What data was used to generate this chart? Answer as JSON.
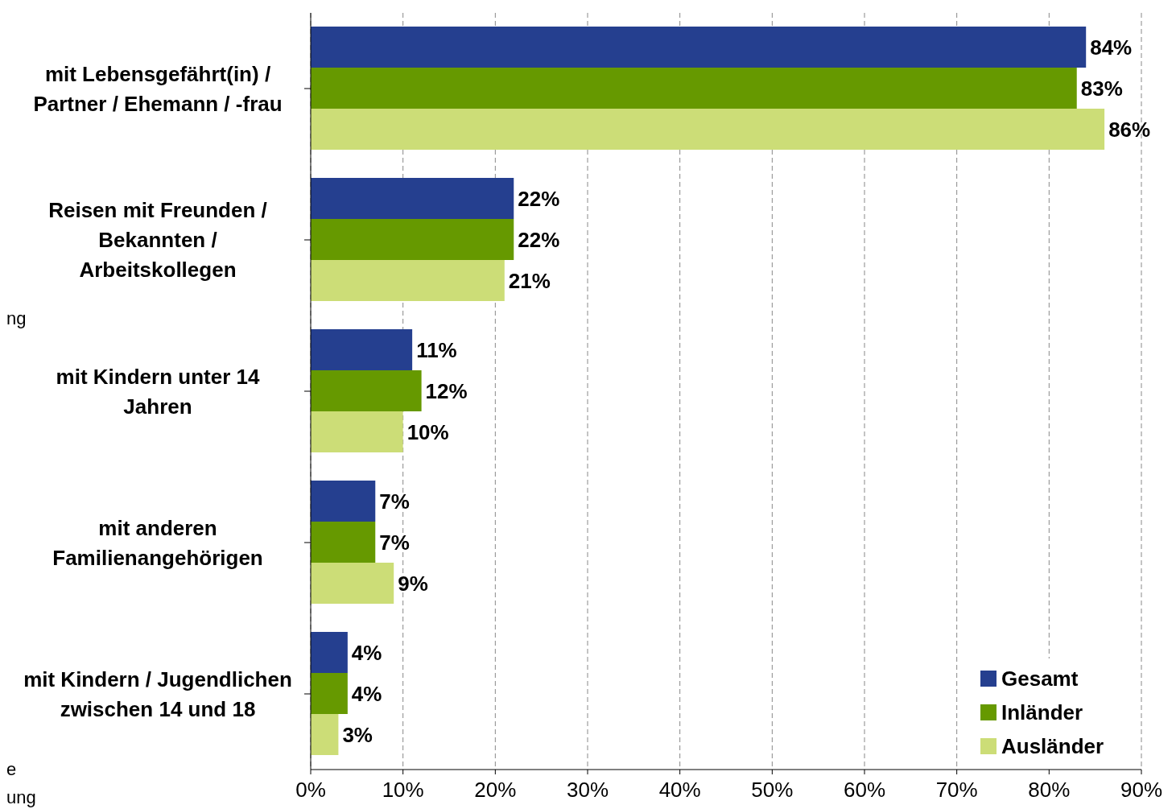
{
  "chart_data": {
    "type": "bar",
    "orientation": "horizontal",
    "categories": [
      "mit Lebensgefährt(in) / Partner / Ehemann / -frau",
      "Reisen mit Freunden / Bekannten / Arbeitskollegen",
      "mit Kindern unter 14 Jahren",
      "mit anderen Familienangehörigen",
      "mit Kindern / Jugendlichen zwischen 14 und 18"
    ],
    "series": [
      {
        "name": "Gesamt",
        "color": "#253f8f",
        "values": [
          84,
          22,
          11,
          7,
          4
        ],
        "value_labels": [
          "84%",
          "22%",
          "11%",
          "7%",
          "4%"
        ]
      },
      {
        "name": "Inländer",
        "color": "#669900",
        "values": [
          83,
          22,
          12,
          7,
          4
        ],
        "value_labels": [
          "83%",
          "22%",
          "12%",
          "7%",
          "4%"
        ]
      },
      {
        "name": "Ausländer",
        "color": "#ccdd77",
        "values": [
          86,
          21,
          10,
          9,
          3
        ],
        "value_labels": [
          "86%",
          "21%",
          "10%",
          "9%",
          "3%"
        ]
      }
    ],
    "xlim": [
      0,
      90
    ],
    "xticks": [
      {
        "value": 0,
        "label": "0%"
      },
      {
        "value": 10,
        "label": "10%"
      },
      {
        "value": 20,
        "label": "20%"
      },
      {
        "value": 30,
        "label": "30%"
      },
      {
        "value": 40,
        "label": "40%"
      },
      {
        "value": 50,
        "label": "50%"
      },
      {
        "value": 60,
        "label": "60%"
      },
      {
        "value": 70,
        "label": "70%"
      },
      {
        "value": 80,
        "label": "80%"
      },
      {
        "value": 90,
        "label": "90%"
      }
    ],
    "grid": "x",
    "legend": "bottom right",
    "annotations": [
      "ng",
      "e",
      "ung"
    ]
  }
}
